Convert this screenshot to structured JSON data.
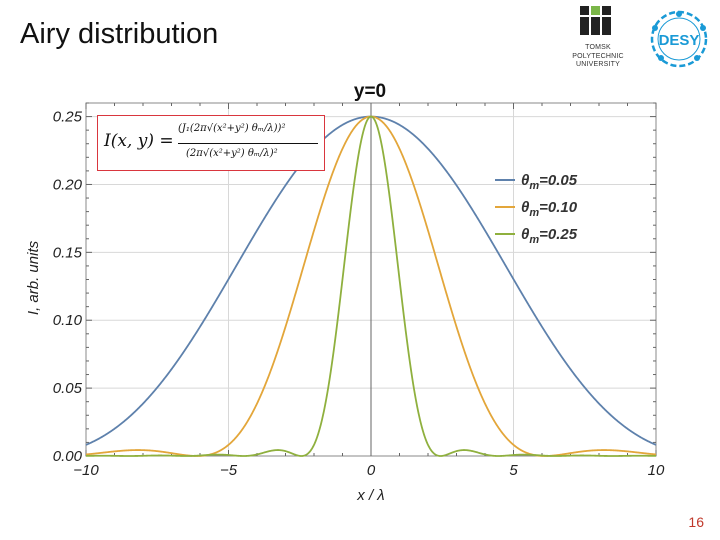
{
  "slide": {
    "title": "Airy distribution",
    "page_number": "16"
  },
  "logos": {
    "tpu": {
      "lines": [
        "TOMSK",
        "POLYTECHNIC",
        "UNIVERSITY"
      ],
      "icon": "tpu-logo-icon"
    },
    "desy": {
      "text": "DESY",
      "icon": "desy-logo-icon",
      "color": "#1a9ad6"
    }
  },
  "formula": {
    "lhs": "I(x, y) =",
    "numerator": "(J₁(2π√(x²+y²) θₘ/λ))²",
    "denominator": "(2π√(x²+y²) θₘ/λ)²"
  },
  "chart_data": {
    "type": "line",
    "title": "y=0",
    "xlabel": "x / λ",
    "ylabel": "I, arb. units",
    "xlim": [
      -10,
      10
    ],
    "ylim": [
      0,
      0.26
    ],
    "x_ticks": [
      -10,
      -5,
      0,
      5,
      10
    ],
    "x_tick_labels": [
      "−10",
      "−5",
      "0",
      "5",
      "10"
    ],
    "y_ticks": [
      0,
      0.05,
      0.1,
      0.15,
      0.2,
      0.25
    ],
    "y_tick_labels": [
      "0.00",
      "0.05",
      "0.10",
      "0.15",
      "0.20",
      "0.25"
    ],
    "grid": true,
    "legend_position": "right",
    "function": "I(x) = (J1(2*pi*|x|*theta_m))^2 / (2*pi*|x|*theta_m)^2",
    "series": [
      {
        "name": "θm=0.05",
        "label_main": "θ",
        "label_sub": "m",
        "label_rest": "=0.05",
        "theta_m": 0.05,
        "color": "#5e81ac"
      },
      {
        "name": "θm=0.10",
        "label_main": "θ",
        "label_sub": "m",
        "label_rest": "=0.10",
        "theta_m": 0.1,
        "color": "#e3a63a"
      },
      {
        "name": "θm=0.25",
        "label_main": "θ",
        "label_sub": "m",
        "label_rest": "=0.25",
        "theta_m": 0.25,
        "color": "#8fb03e"
      }
    ]
  }
}
